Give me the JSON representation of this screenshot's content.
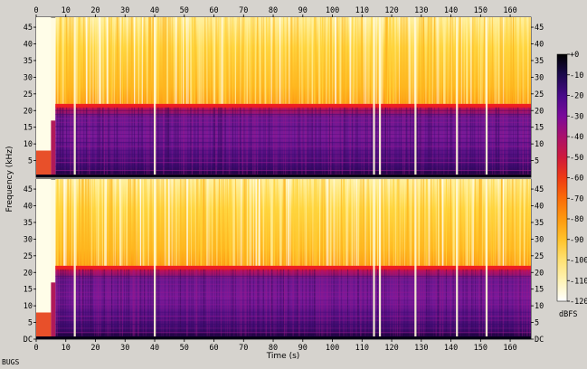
{
  "footer_label": "BUGS",
  "chart_data": {
    "type": "heatmap",
    "title": "",
    "xlabel": "Time (s)",
    "ylabel": "Frequency (kHz)",
    "xlim": [
      0,
      167
    ],
    "x_ticks": [
      0,
      10,
      20,
      30,
      40,
      50,
      60,
      70,
      80,
      90,
      100,
      110,
      120,
      130,
      140,
      150,
      160
    ],
    "channels": [
      {
        "ylim": [
          0,
          48
        ],
        "y_ticks": [
          5,
          10,
          15,
          20,
          25,
          30,
          35,
          40,
          45
        ],
        "y_tick_labels": [
          "5",
          "10",
          "15",
          "20",
          "25",
          "30",
          "35",
          "40",
          "45"
        ]
      },
      {
        "ylim": [
          0,
          48
        ],
        "y_ticks": [
          0,
          5,
          10,
          15,
          20,
          25,
          30,
          35,
          40,
          45
        ],
        "y_tick_labels": [
          "DC",
          "5",
          "10",
          "15",
          "20",
          "25",
          "30",
          "35",
          "40",
          "45"
        ]
      }
    ],
    "colorbar": {
      "label": "dBFS",
      "range": [
        -120,
        0
      ],
      "ticks": [
        0,
        -10,
        -20,
        -30,
        -40,
        -50,
        -60,
        -70,
        -80,
        -90,
        -100,
        -110,
        -120
      ],
      "tick_labels": [
        "+0",
        "-10",
        "-20",
        "-30",
        "-40",
        "-50",
        "-60",
        "-70",
        "-80",
        "-90",
        "-100",
        "-110",
        "-120"
      ],
      "colors": [
        "#000000",
        "#1a0a4a",
        "#4a0a8a",
        "#7a0a9a",
        "#a8106e",
        "#d01a3a",
        "#ee3a14",
        "#fa6a08",
        "#fd9a10",
        "#ffc22a",
        "#ffe070",
        "#fff4b8",
        "#ffffff"
      ]
    },
    "bandwidth_cutoff_khz": 22,
    "onset_s": 5,
    "dropout_times_s": [
      13,
      40,
      114,
      116,
      128,
      142,
      152
    ]
  }
}
